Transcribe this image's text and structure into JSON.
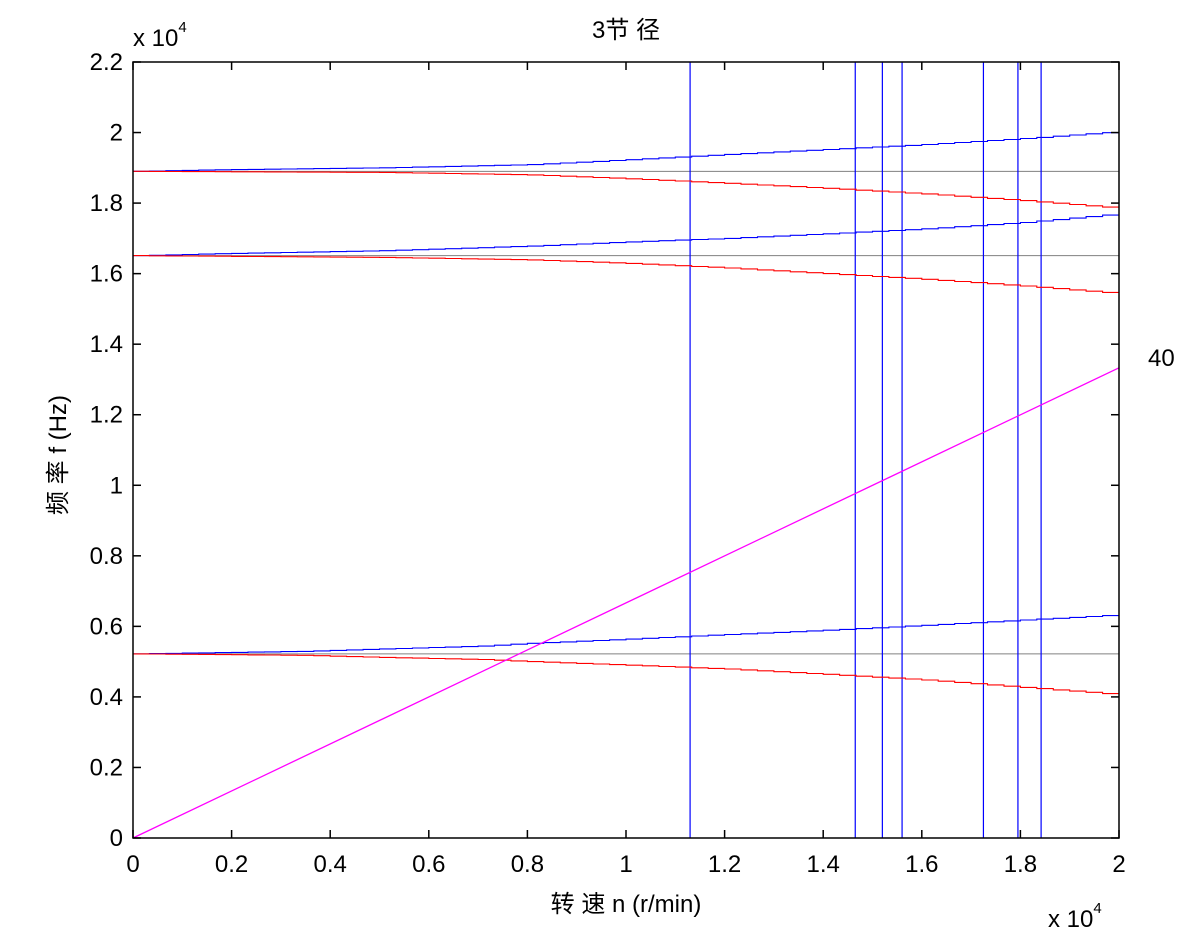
{
  "chart_data": {
    "type": "line",
    "title": "3节 径",
    "xlabel": "转 速   n (r/min)",
    "ylabel": "频 率   f (Hz)",
    "x_multiplier_label": "x 10",
    "y_multiplier_label": "x 10",
    "exponent": "4",
    "xlim": [
      0,
      20000
    ],
    "ylim": [
      0,
      22000
    ],
    "x_ticks": [
      0,
      2000,
      4000,
      6000,
      8000,
      10000,
      12000,
      14000,
      16000,
      18000,
      20000
    ],
    "x_tick_labels": [
      "0",
      "0.2",
      "0.4",
      "0.6",
      "0.8",
      "1",
      "1.2",
      "1.4",
      "1.6",
      "1.8",
      "2"
    ],
    "y_ticks": [
      0,
      2000,
      4000,
      6000,
      8000,
      10000,
      12000,
      14000,
      16000,
      18000,
      20000,
      22000
    ],
    "y_tick_labels": [
      "0",
      "0.2",
      "0.4",
      "0.6",
      "0.8",
      "1",
      "1.2",
      "1.4",
      "1.6",
      "1.8",
      "2",
      "2.2"
    ],
    "grid": false,
    "colors": {
      "forward": "#0000ff",
      "backward": "#ff0000",
      "static": "#808080",
      "excitation": "#ff00ff",
      "resonance": "#0000ff",
      "axes": "#000000"
    },
    "static_lines": [
      {
        "y": 5220
      },
      {
        "y": 16510
      },
      {
        "y": 18900
      }
    ],
    "series": [
      {
        "color": "forward",
        "step": true,
        "x": [
          0,
          3300,
          5000,
          7000,
          8000,
          10000,
          12000,
          14000,
          16000,
          18000,
          20000
        ],
        "y": [
          5220,
          5290,
          5360,
          5440,
          5520,
          5640,
          5770,
          5890,
          6030,
          6180,
          6330
        ]
      },
      {
        "color": "backward",
        "step": true,
        "x": [
          0,
          3300,
          5000,
          7000,
          8000,
          10000,
          12000,
          14000,
          16000,
          18000,
          20000
        ],
        "y": [
          5220,
          5180,
          5120,
          5060,
          5000,
          4900,
          4790,
          4640,
          4480,
          4270,
          4060
        ]
      },
      {
        "color": "forward",
        "step": true,
        "x": [
          0,
          1500,
          5000,
          8000,
          10000,
          12000,
          14000,
          16000,
          18000,
          20000
        ],
        "y": [
          16510,
          16560,
          16650,
          16780,
          16900,
          17000,
          17130,
          17270,
          17450,
          17700
        ]
      },
      {
        "color": "backward",
        "step": true,
        "x": [
          0,
          5000,
          8000,
          10000,
          12000,
          14000,
          16000,
          18000,
          20000
        ],
        "y": [
          16510,
          16460,
          16390,
          16290,
          16160,
          16000,
          15840,
          15650,
          15430
        ]
      },
      {
        "color": "forward",
        "step": true,
        "x": [
          0,
          1500,
          5000,
          8000,
          10000,
          12000,
          14000,
          16000,
          18000,
          20000
        ],
        "y": [
          18900,
          18940,
          19000,
          19090,
          19230,
          19380,
          19520,
          19660,
          19830,
          20030
        ]
      },
      {
        "color": "backward",
        "step": true,
        "x": [
          0,
          5000,
          8000,
          10000,
          12000,
          14000,
          16000,
          18000,
          20000
        ],
        "y": [
          18900,
          18870,
          18800,
          18690,
          18560,
          18420,
          18260,
          18070,
          17850
        ]
      },
      {
        "color": "excitation",
        "step": false,
        "x": [
          0,
          20000
        ],
        "y": [
          0,
          13330
        ]
      }
    ],
    "resonance_lines": [
      11300,
      14650,
      15200,
      15600,
      17250,
      17950,
      18420
    ],
    "excitation_label": "40"
  }
}
